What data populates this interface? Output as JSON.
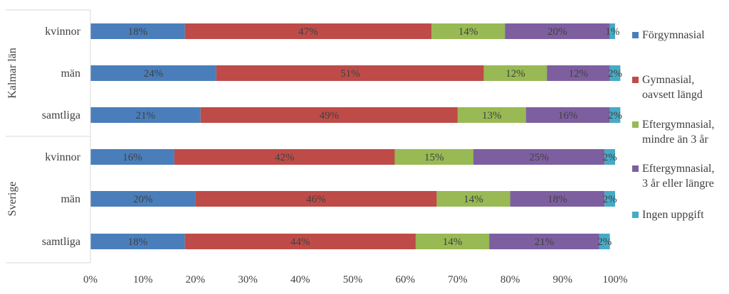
{
  "chart_data": {
    "type": "bar",
    "orientation": "horizontal",
    "stacked": true,
    "groups": [
      {
        "name": "Kalmar län",
        "categories": [
          "kvinnor",
          "män",
          "samtliga"
        ]
      },
      {
        "name": "Sverige",
        "categories": [
          "kvinnor",
          "män",
          "samtliga"
        ]
      }
    ],
    "series": [
      {
        "name": "Förgymnasial",
        "color": "#4a7ebb",
        "values": [
          18,
          24,
          21,
          16,
          20,
          18
        ],
        "labels": [
          "18%",
          "24%",
          "21%",
          "16%",
          "20%",
          "18%"
        ]
      },
      {
        "name": "Gymnasial,\noavsett längd",
        "color": "#be4b48",
        "values": [
          47,
          51,
          49,
          42,
          46,
          44
        ],
        "labels": [
          "47%",
          "51%",
          "49%",
          "42%",
          "46%",
          "44%"
        ]
      },
      {
        "name": "Eftergymnasial,\nmindre än 3 år",
        "color": "#98b954",
        "values": [
          14,
          12,
          13,
          15,
          14,
          14
        ],
        "labels": [
          "14%",
          "12%",
          "13%",
          "15%",
          "14%",
          "14%"
        ]
      },
      {
        "name": "Eftergymnasial,\n3 år eller längre",
        "color": "#7d5fa0",
        "values": [
          20,
          12,
          16,
          25,
          18,
          21
        ],
        "labels": [
          "20%",
          "12%",
          "16%",
          "25%",
          "18%",
          "21%"
        ]
      },
      {
        "name": "Ingen uppgift",
        "color": "#46aac5",
        "values": [
          1,
          2,
          2,
          2,
          2,
          2
        ],
        "labels": [
          "1%",
          "2%",
          "2%",
          "2%",
          "2%",
          "2%"
        ]
      }
    ],
    "xaxis": {
      "ticks": [
        "0%",
        "10%",
        "20%",
        "30%",
        "40%",
        "50%",
        "60%",
        "70%",
        "80%",
        "90%",
        "100%"
      ],
      "range": [
        0,
        100
      ]
    },
    "grid": false,
    "legend": "right"
  }
}
